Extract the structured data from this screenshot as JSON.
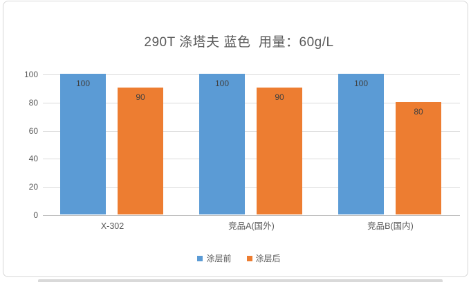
{
  "chart_data": {
    "type": "bar",
    "title": "290T 涤塔夫 蓝色  用量：60g/L",
    "categories": [
      "X-302",
      "竞品A(国外)",
      "竞品B(国内)"
    ],
    "series": [
      {
        "name": "涂层前",
        "color": "#5B9BD5",
        "values": [
          100,
          100,
          100
        ]
      },
      {
        "name": "涂层后",
        "color": "#ED7D31",
        "values": [
          90,
          90,
          80
        ]
      }
    ],
    "xlabel": "",
    "ylabel": "",
    "ylim": [
      0,
      100
    ],
    "yticks": [
      0,
      20,
      40,
      60,
      80,
      100
    ],
    "grid": "horizontal",
    "legend_position": "bottom",
    "data_labels": "inside-end"
  }
}
